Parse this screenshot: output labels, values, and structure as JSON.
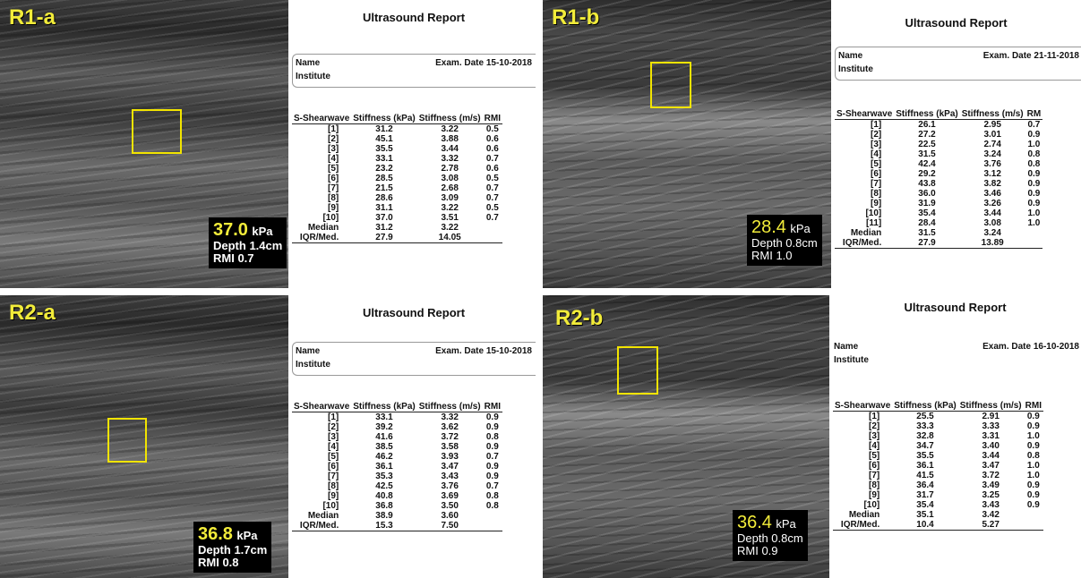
{
  "panels": [
    {
      "label": "R1-a",
      "readout": {
        "value": "37.0",
        "unit": "kPa",
        "depth": "Depth 1.4cm",
        "rmi": "RMI 0.7"
      },
      "report": {
        "title": "Ultrasound Report",
        "name_label": "Name",
        "institute_label": "Institute",
        "exam_date": "Exam. Date   15-10-2018",
        "headers": [
          "S-Shearwave",
          "Stiffness (kPa)",
          "Stiffness (m/s)",
          "RMI"
        ],
        "rows": [
          [
            "[1]",
            "31.2",
            "3.22",
            "0.5"
          ],
          [
            "[2]",
            "45.1",
            "3.88",
            "0.6"
          ],
          [
            "[3]",
            "35.5",
            "3.44",
            "0.6"
          ],
          [
            "[4]",
            "33.1",
            "3.32",
            "0.7"
          ],
          [
            "[5]",
            "23.2",
            "2.78",
            "0.6"
          ],
          [
            "[6]",
            "28.5",
            "3.08",
            "0.5"
          ],
          [
            "[7]",
            "21.5",
            "2.68",
            "0.7"
          ],
          [
            "[8]",
            "28.6",
            "3.09",
            "0.7"
          ],
          [
            "[9]",
            "31.1",
            "3.22",
            "0.5"
          ],
          [
            "[10]",
            "37.0",
            "3.51",
            "0.7"
          ],
          [
            "Median",
            "31.2",
            "3.22",
            ""
          ],
          [
            "IQR/Med.",
            "27.9",
            "14.05",
            ""
          ]
        ]
      }
    },
    {
      "label": "R1-b",
      "readout": {
        "value": "28.4",
        "unit": "kPa",
        "depth": "Depth 0.8cm",
        "rmi": "RMI 1.0"
      },
      "report": {
        "title": "Ultrasound Report",
        "name_label": "Name",
        "institute_label": "Institute",
        "exam_date": "Exam. Date   21-11-2018",
        "headers": [
          "S-Shearwave",
          "Stiffness (kPa)",
          "Stiffness (m/s)",
          "RM"
        ],
        "rows": [
          [
            "[1]",
            "26.1",
            "2.95",
            "0.7"
          ],
          [
            "[2]",
            "27.2",
            "3.01",
            "0.9"
          ],
          [
            "[3]",
            "22.5",
            "2.74",
            "1.0"
          ],
          [
            "[4]",
            "31.5",
            "3.24",
            "0.8"
          ],
          [
            "[5]",
            "42.4",
            "3.76",
            "0.8"
          ],
          [
            "[6]",
            "29.2",
            "3.12",
            "0.9"
          ],
          [
            "[7]",
            "43.8",
            "3.82",
            "0.9"
          ],
          [
            "[8]",
            "36.0",
            "3.46",
            "0.9"
          ],
          [
            "[9]",
            "31.9",
            "3.26",
            "0.9"
          ],
          [
            "[10]",
            "35.4",
            "3.44",
            "1.0"
          ],
          [
            "[11]",
            "28.4",
            "3.08",
            "1.0"
          ],
          [
            "Median",
            "31.5",
            "3.24",
            ""
          ],
          [
            "IQR/Med.",
            "27.9",
            "13.89",
            ""
          ]
        ]
      }
    },
    {
      "label": "R2-a",
      "readout": {
        "value": "36.8",
        "unit": "kPa",
        "depth": "Depth 1.7cm",
        "rmi": "RMI 0.8"
      },
      "report": {
        "title": "Ultrasound Report",
        "name_label": "Name",
        "institute_label": "Institute",
        "exam_date": "Exam. Date   15-10-2018",
        "headers": [
          "S-Shearwave",
          "Stiffness (kPa)",
          "Stiffness (m/s)",
          "RMI"
        ],
        "rows": [
          [
            "[1]",
            "33.1",
            "3.32",
            "0.9"
          ],
          [
            "[2]",
            "39.2",
            "3.62",
            "0.9"
          ],
          [
            "[3]",
            "41.6",
            "3.72",
            "0.8"
          ],
          [
            "[4]",
            "38.5",
            "3.58",
            "0.9"
          ],
          [
            "[5]",
            "46.2",
            "3.93",
            "0.7"
          ],
          [
            "[6]",
            "36.1",
            "3.47",
            "0.9"
          ],
          [
            "[7]",
            "35.3",
            "3.43",
            "0.9"
          ],
          [
            "[8]",
            "42.5",
            "3.76",
            "0.7"
          ],
          [
            "[9]",
            "40.8",
            "3.69",
            "0.8"
          ],
          [
            "[10]",
            "36.8",
            "3.50",
            "0.8"
          ],
          [
            "Median",
            "38.9",
            "3.60",
            ""
          ],
          [
            "IQR/Med.",
            "15.3",
            "7.50",
            ""
          ]
        ]
      }
    },
    {
      "label": "R2-b",
      "readout": {
        "value": "36.4",
        "unit": "kPa",
        "depth": "Depth 0.8cm",
        "rmi": "RMI 0.9"
      },
      "report": {
        "title": "Ultrasound Report",
        "name_label": "Name",
        "institute_label": "Institute",
        "exam_date": "Exam. Date   16-10-2018",
        "headers": [
          "S-Shearwave",
          "Stiffness (kPa)",
          "Stiffness (m/s)",
          "RMI"
        ],
        "rows": [
          [
            "[1]",
            "25.5",
            "2.91",
            "0.9"
          ],
          [
            "[2]",
            "33.3",
            "3.33",
            "0.9"
          ],
          [
            "[3]",
            "32.8",
            "3.31",
            "1.0"
          ],
          [
            "[4]",
            "34.7",
            "3.40",
            "0.9"
          ],
          [
            "[5]",
            "35.5",
            "3.44",
            "0.8"
          ],
          [
            "[6]",
            "36.1",
            "3.47",
            "1.0"
          ],
          [
            "[7]",
            "41.5",
            "3.72",
            "1.0"
          ],
          [
            "[8]",
            "36.4",
            "3.49",
            "0.9"
          ],
          [
            "[9]",
            "31.7",
            "3.25",
            "0.9"
          ],
          [
            "[10]",
            "35.4",
            "3.43",
            "0.9"
          ],
          [
            "Median",
            "35.1",
            "3.42",
            ""
          ],
          [
            "IQR/Med.",
            "10.4",
            "5.27",
            ""
          ]
        ]
      }
    }
  ]
}
